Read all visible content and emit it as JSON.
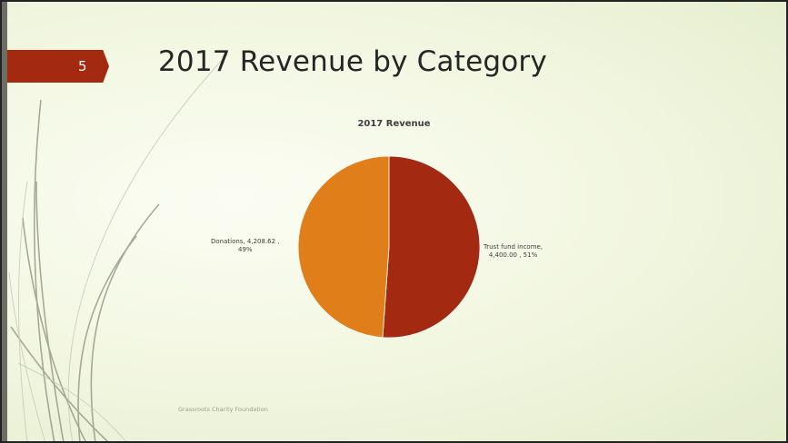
{
  "slide": {
    "number": "5",
    "title": "2017 Revenue by Category",
    "footer": "Grassroots Charity Foundation",
    "accent_color": "#a32a10"
  },
  "chart_data": {
    "type": "pie",
    "title": "2017 Revenue",
    "slices": [
      {
        "name": "Trust fund income",
        "value": 4400.0,
        "percent": 51,
        "color": "#a32a10"
      },
      {
        "name": "Donations",
        "value": 4208.62,
        "percent": 49,
        "color": "#e07f1a"
      }
    ],
    "labels": {
      "trust": {
        "line1": "Trust fund income,",
        "line2": "4,400.00 , 51%"
      },
      "donations": {
        "line1": "Donations,  4,208.62 ,",
        "line2": "49%"
      }
    }
  }
}
